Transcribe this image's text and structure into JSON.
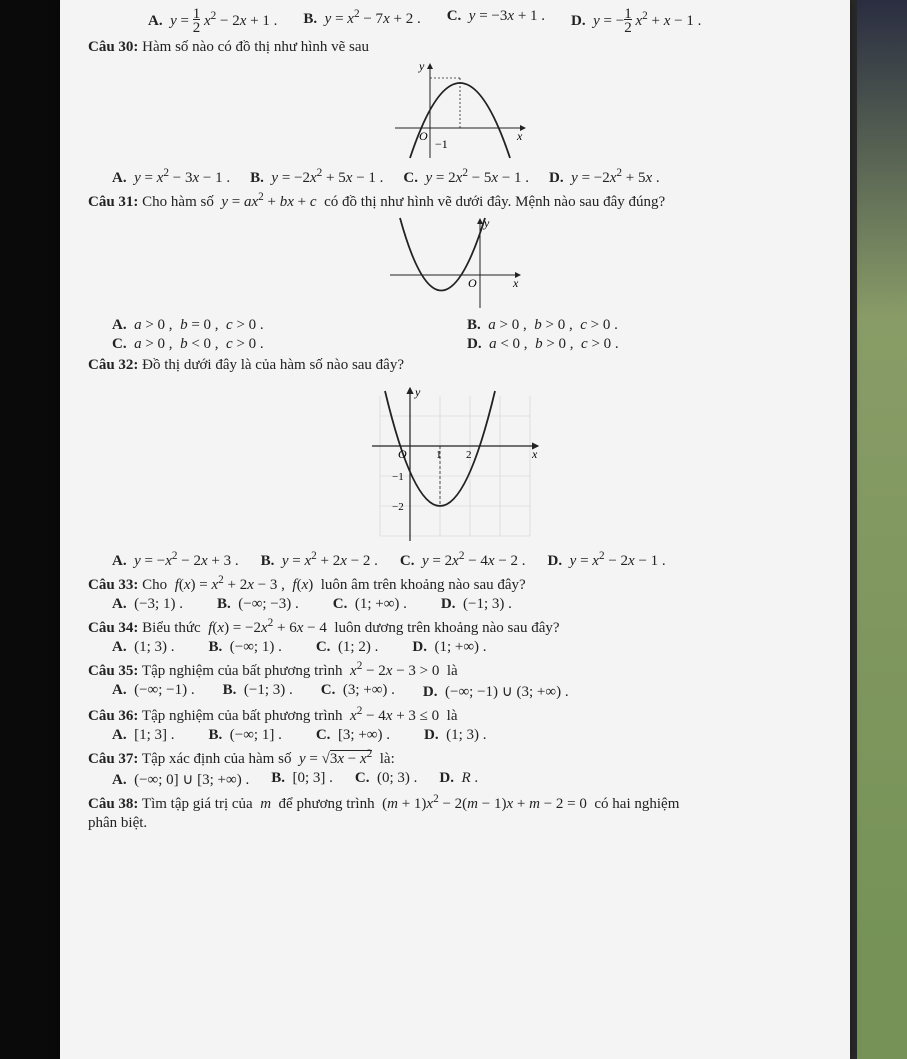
{
  "q29": {
    "A": "A.  y = ½ x² − 2x + 1 .",
    "B": "B.  y = x² − 7x + 2 .",
    "C": "C.  y = −3x + 1 .",
    "D": "D.  y = −½ x² + x − 1 ."
  },
  "q30": {
    "prompt_label": "Câu 30:",
    "prompt": " Hàm số nào có đồ thị như hình vẽ sau",
    "A": "A.  y = x² − 3x − 1 .",
    "B": "B.  y = −2x² + 5x − 1 .",
    "C": "C.  y = 2x² − 5x − 1 .",
    "D": "D.  y = −2x² + 5x .",
    "graph": {
      "label_y": "y",
      "label_x": "x",
      "label_O": "O",
      "label_m1": "−1",
      "axis_color": "#222",
      "curve_color": "#222"
    }
  },
  "q31": {
    "prompt_label": "Câu 31:",
    "prompt": " Cho hàm số  y = ax² + bx + c  có đồ thị như hình vẽ dưới đây. Mệnh nào sau đây đúng?",
    "A": "A.  a > 0 ,  b = 0 ,  c > 0 .",
    "B": "B.  a > 0 ,  b > 0 ,  c > 0 .",
    "C": "C.  a > 0 ,  b < 0 ,  c > 0 .",
    "D": "D.  a < 0 ,  b > 0 ,  c > 0 .",
    "graph": {
      "label_y": "y",
      "label_x": "x",
      "label_O": "O",
      "axis_color": "#222",
      "curve_color": "#222"
    }
  },
  "q32": {
    "prompt_label": "Câu 32:",
    "prompt": " Đồ thị dưới đây là của hàm số nào sau đây?",
    "A": "A.  y = −x² − 2x + 3 .",
    "B": "B.  y = x² + 2x − 2 .",
    "C": "C.  y = 2x² − 4x − 2 .",
    "D": "D.  y = x² − 2x − 1 .",
    "graph": {
      "label_y": "y",
      "label_x": "x",
      "label_O": "O",
      "tick_1": "1",
      "tick_2": "2",
      "tick_m1": "−1",
      "tick_m2": "−2",
      "axis_color": "#222",
      "curve_color": "#222",
      "grid_color": "#cfcfcf"
    }
  },
  "q33": {
    "prompt_label": "Câu 33:",
    "prompt": " Cho  f(x) = x² + 2x − 3 ,  f(x)  luôn âm trên khoảng nào sau đây?",
    "A": "A.  (−3; 1) .",
    "B": "B.  (−∞; −3) .",
    "C": "C.  (1; +∞) .",
    "D": "D.  (−1; 3) ."
  },
  "q34": {
    "prompt_label": "Câu 34:",
    "prompt": " Biểu thức  f(x) = −2x² + 6x − 4  luôn dương trên khoảng nào sau đây?",
    "A": "A.  (1; 3) .",
    "B": "B.  (−∞; 1) .",
    "C": "C.  (1; 2) .",
    "D": "D.  (1; +∞) ."
  },
  "q35": {
    "prompt_label": "Câu 35:",
    "prompt": " Tập nghiệm của bất phương trình  x² − 2x − 3 > 0  là",
    "A": "A.  (−∞; −1) .",
    "B": "B.  (−1; 3) .",
    "C": "C.  (3; +∞) .",
    "D": "D.  (−∞; −1) ∪ (3; +∞) ."
  },
  "q36": {
    "prompt_label": "Câu 36:",
    "prompt": " Tập nghiệm của bất phương trình  x² − 4x + 3 ≤ 0  là",
    "A": "A.  [1; 3] .",
    "B": "B.  (−∞; 1] .",
    "C": "C.  [3; +∞) .",
    "D": "D.  (1; 3) ."
  },
  "q37": {
    "prompt_label": "Câu 37:",
    "prompt": " Tập xác định của hàm số  y = √(3x − x²)  là:",
    "A": "A.  (−∞; 0] ∪ [3; +∞) .",
    "B": "B.  [0; 3] .",
    "C": "C.  (0; 3) .",
    "D": "D.  R ."
  },
  "q38": {
    "prompt_label": "Câu 38:",
    "prompt": " Tìm tập giá trị của  m  để phương trình  (m + 1)x² − 2(m − 1)x + m − 2 = 0  có hai nghiệm",
    "tail": "phân biệt."
  }
}
